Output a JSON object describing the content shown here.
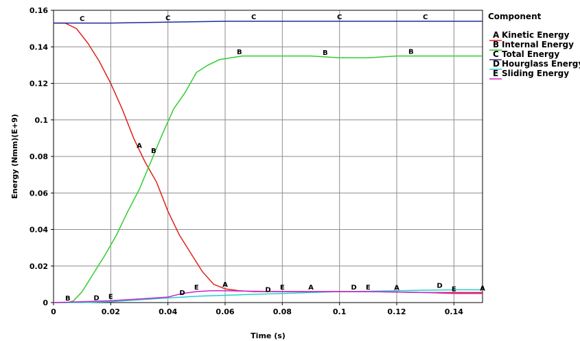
{
  "chart_data": {
    "type": "line",
    "xlabel": "Time (s)",
    "ylabel": "Energy (Nmm)(E+9)",
    "xlim": [
      0,
      0.15
    ],
    "ylim": [
      0,
      0.16
    ],
    "xticks": [
      "0",
      "0.02",
      "0.04",
      "0.06",
      "0.08",
      "0.1",
      "0.12",
      "0.14"
    ],
    "yticks": [
      "0",
      "0.02",
      "0.04",
      "0.06",
      "0.08",
      "0.1",
      "0.12",
      "0.14",
      "0.16"
    ],
    "grid": true,
    "legend": {
      "title": "Component",
      "position": "right"
    },
    "series": [
      {
        "letter": "A",
        "name": "Kinetic Energy",
        "color": "#e0201a",
        "x": [
          0,
          0.004,
          0.008,
          0.012,
          0.016,
          0.02,
          0.024,
          0.028,
          0.032,
          0.036,
          0.04,
          0.044,
          0.048,
          0.052,
          0.056,
          0.06,
          0.065,
          0.07,
          0.08,
          0.09,
          0.1,
          0.11,
          0.12,
          0.13,
          0.14,
          0.15
        ],
        "y": [
          0.153,
          0.153,
          0.15,
          0.142,
          0.132,
          0.12,
          0.106,
          0.09,
          0.077,
          0.066,
          0.05,
          0.037,
          0.027,
          0.017,
          0.01,
          0.0075,
          0.0065,
          0.006,
          0.006,
          0.006,
          0.006,
          0.006,
          0.0058,
          0.0055,
          0.0055,
          0.0055
        ],
        "marker_x": [
          0.03,
          0.06,
          0.09,
          0.12,
          0.15
        ]
      },
      {
        "letter": "B",
        "name": "Internal Energy",
        "color": "#32cc32",
        "x": [
          0,
          0.005,
          0.007,
          0.01,
          0.014,
          0.018,
          0.022,
          0.026,
          0.03,
          0.034,
          0.038,
          0.042,
          0.046,
          0.05,
          0.054,
          0.058,
          0.062,
          0.066,
          0.07,
          0.08,
          0.09,
          0.1,
          0.11,
          0.12,
          0.13,
          0.14,
          0.15
        ],
        "y": [
          0,
          0,
          0.001,
          0.006,
          0.016,
          0.026,
          0.037,
          0.05,
          0.062,
          0.077,
          0.092,
          0.106,
          0.115,
          0.126,
          0.13,
          0.133,
          0.134,
          0.135,
          0.135,
          0.135,
          0.135,
          0.134,
          0.134,
          0.135,
          0.135,
          0.135,
          0.135
        ],
        "marker_x": [
          0.005,
          0.035,
          0.065,
          0.095,
          0.125
        ]
      },
      {
        "letter": "C",
        "name": "Total Energy",
        "color": "#1a2a9c",
        "x": [
          0,
          0.01,
          0.02,
          0.04,
          0.06,
          0.08,
          0.1,
          0.12,
          0.15
        ],
        "y": [
          0.153,
          0.153,
          0.153,
          0.1535,
          0.154,
          0.154,
          0.154,
          0.154,
          0.154
        ],
        "marker_x": [
          0.01,
          0.04,
          0.07,
          0.1,
          0.13
        ]
      },
      {
        "letter": "D",
        "name": "Hourglass Energy",
        "color": "#20d0d0",
        "x": [
          0,
          0.01,
          0.02,
          0.03,
          0.04,
          0.05,
          0.06,
          0.07,
          0.08,
          0.09,
          0.1,
          0.11,
          0.12,
          0.13,
          0.14,
          0.15
        ],
        "y": [
          0,
          0,
          0.0005,
          0.0015,
          0.0025,
          0.0035,
          0.004,
          0.0045,
          0.005,
          0.0055,
          0.006,
          0.0062,
          0.0065,
          0.0068,
          0.007,
          0.007
        ],
        "marker_x": [
          0.015,
          0.045,
          0.075,
          0.105,
          0.135
        ]
      },
      {
        "letter": "E",
        "name": "Sliding Energy",
        "color": "#cc22cc",
        "x": [
          0,
          0.01,
          0.02,
          0.03,
          0.04,
          0.045,
          0.05,
          0.055,
          0.06,
          0.07,
          0.08,
          0.09,
          0.1,
          0.11,
          0.12,
          0.13,
          0.14,
          0.15
        ],
        "y": [
          0,
          0.0005,
          0.001,
          0.002,
          0.003,
          0.005,
          0.006,
          0.0065,
          0.0065,
          0.0062,
          0.006,
          0.006,
          0.006,
          0.006,
          0.0058,
          0.0055,
          0.005,
          0.005
        ],
        "marker_x": [
          0.02,
          0.05,
          0.08,
          0.11,
          0.14
        ]
      }
    ]
  }
}
